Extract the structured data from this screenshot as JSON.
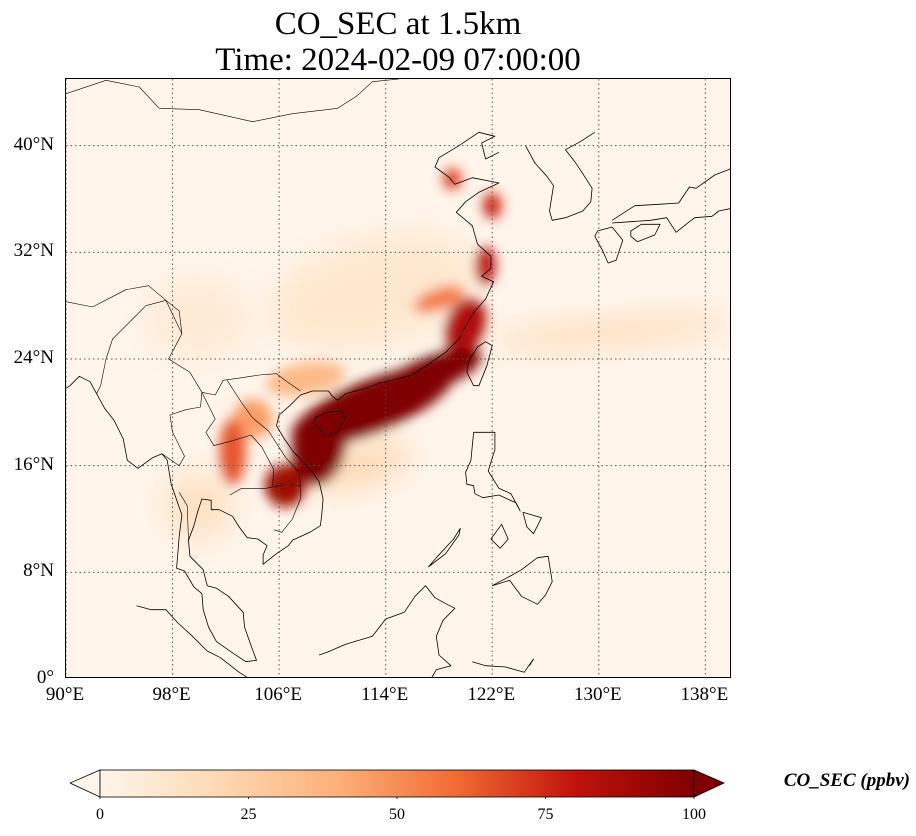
{
  "title": {
    "line1": "CO_SEC at 1.5km",
    "line2": "Time: 2024-02-09 07:00:00"
  },
  "map": {
    "projection": "PlateCarree",
    "lon_range": [
      90,
      140
    ],
    "lat_range": [
      0,
      45
    ],
    "lat_ticks": [
      {
        "value": 0,
        "label": "0°"
      },
      {
        "value": 8,
        "label": "8°N"
      },
      {
        "value": 16,
        "label": "16°N"
      },
      {
        "value": 24,
        "label": "24°N"
      },
      {
        "value": 32,
        "label": "32°N"
      },
      {
        "value": 40,
        "label": "40°N"
      }
    ],
    "lon_ticks": [
      {
        "value": 90,
        "label": "90°E"
      },
      {
        "value": 98,
        "label": "98°E"
      },
      {
        "value": 106,
        "label": "106°E"
      },
      {
        "value": 114,
        "label": "114°E"
      },
      {
        "value": 122,
        "label": "122°E"
      },
      {
        "value": 130,
        "label": "130°E"
      },
      {
        "value": 138,
        "label": "138°E"
      }
    ],
    "gridlines": "dotted",
    "background_color": "#fff5eb",
    "coastline_color": "#000000",
    "plume_blobs": [
      {
        "lon": 113,
        "lat": 20.5,
        "rlon": 6.5,
        "rlat": 2.0,
        "rot": -22,
        "value": 100
      },
      {
        "lon": 117.5,
        "lat": 23.0,
        "rlon": 4.0,
        "rlat": 1.3,
        "rot": -20,
        "value": 100
      },
      {
        "lon": 109.0,
        "lat": 17.5,
        "rlon": 2.0,
        "rlat": 3.0,
        "rot": 10,
        "value": 100
      },
      {
        "lon": 106.5,
        "lat": 14.5,
        "rlon": 1.6,
        "rlat": 1.6,
        "rot": 0,
        "value": 90
      },
      {
        "lon": 120.0,
        "lat": 26.5,
        "rlon": 1.5,
        "rlat": 2.2,
        "rot": 20,
        "value": 85
      },
      {
        "lon": 121.5,
        "lat": 31.0,
        "rlon": 0.8,
        "rlat": 1.5,
        "rot": 0,
        "value": 80
      },
      {
        "lon": 122.0,
        "lat": 35.5,
        "rlon": 0.7,
        "rlat": 1.0,
        "rot": 0,
        "value": 75
      },
      {
        "lon": 119.0,
        "lat": 37.5,
        "rlon": 0.7,
        "rlat": 0.8,
        "rot": 0,
        "value": 70
      },
      {
        "lon": 118.0,
        "lat": 28.5,
        "rlon": 2.0,
        "rlat": 0.8,
        "rot": -20,
        "value": 55
      },
      {
        "lon": 102.5,
        "lat": 17.0,
        "rlon": 1.0,
        "rlat": 2.5,
        "rot": 0,
        "value": 65
      },
      {
        "lon": 104.0,
        "lat": 19.5,
        "rlon": 1.5,
        "rlat": 1.5,
        "rot": 0,
        "value": 45
      },
      {
        "lon": 108.0,
        "lat": 22.5,
        "rlon": 3.0,
        "rlat": 1.2,
        "rot": -10,
        "value": 35
      },
      {
        "lon": 112.0,
        "lat": 16.0,
        "rlon": 4.0,
        "rlat": 1.5,
        "rot": -15,
        "value": 20
      },
      {
        "lon": 131.0,
        "lat": 26.0,
        "rlon": 9.0,
        "rlat": 1.0,
        "rot": -5,
        "value": 18
      },
      {
        "lon": 113.0,
        "lat": 29.0,
        "rlon": 8.0,
        "rlat": 4.0,
        "rot": -15,
        "value": 10
      },
      {
        "lon": 100.0,
        "lat": 27.0,
        "rlon": 4.0,
        "rlat": 3.0,
        "rot": 0,
        "value": 8
      },
      {
        "lon": 100.0,
        "lat": 13.0,
        "rlon": 2.5,
        "rlat": 2.5,
        "rot": 0,
        "value": 15
      }
    ]
  },
  "colorbar": {
    "label": "CO_SEC (ppbv)",
    "min": 0,
    "max": 100,
    "extend": "both",
    "colormap": [
      "#fff5eb",
      "#fdd9b3",
      "#fdb07a",
      "#f16b33",
      "#c1120c",
      "#7f0000"
    ],
    "ticks": [
      {
        "value": 0,
        "label": "0"
      },
      {
        "value": 25,
        "label": "25"
      },
      {
        "value": 50,
        "label": "50"
      },
      {
        "value": 75,
        "label": "75"
      },
      {
        "value": 100,
        "label": "100"
      }
    ]
  }
}
